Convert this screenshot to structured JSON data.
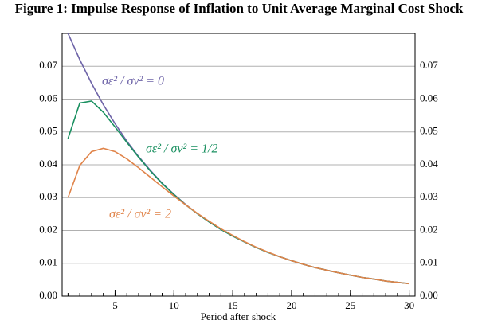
{
  "chart_data": {
    "type": "line",
    "title": "Figure 1: Impulse Response of Inflation to Unit Average Marginal Cost Shock",
    "x_label": "Period after shock",
    "x": [
      1,
      2,
      3,
      4,
      5,
      6,
      7,
      8,
      9,
      10,
      11,
      12,
      13,
      14,
      15,
      16,
      17,
      18,
      19,
      20,
      21,
      22,
      23,
      24,
      25,
      26,
      27,
      28,
      29,
      30
    ],
    "series": [
      {
        "name": "σε² / σν² = 0",
        "color": "#6e64a8",
        "values": [
          0.08,
          0.072,
          0.0648,
          0.0583,
          0.0525,
          0.0472,
          0.0425,
          0.0383,
          0.0344,
          0.031,
          0.0279,
          0.0251,
          0.0226,
          0.0203,
          0.0183,
          0.0165,
          0.0148,
          0.0133,
          0.012,
          0.0108,
          0.0097,
          0.0087,
          0.0079,
          0.0071,
          0.0064,
          0.0057,
          0.0052,
          0.0046,
          0.0042,
          0.0038
        ]
      },
      {
        "name": "σε² / σν² = 1/2",
        "color": "#1a9060",
        "values": [
          0.048,
          0.0588,
          0.0594,
          0.056,
          0.0515,
          0.0468,
          0.0423,
          0.0381,
          0.0343,
          0.0309,
          0.0278,
          0.0251,
          0.0226,
          0.0203,
          0.0183,
          0.0165,
          0.0148,
          0.0133,
          0.012,
          0.0108,
          0.0097,
          0.0087,
          0.0079,
          0.0071,
          0.0064,
          0.0057,
          0.0052,
          0.0046,
          0.0042,
          0.0038
        ]
      },
      {
        "name": "σε² / σν² = 2",
        "color": "#e0844a",
        "values": [
          0.03,
          0.0398,
          0.044,
          0.045,
          0.044,
          0.0418,
          0.0391,
          0.0362,
          0.0333,
          0.0305,
          0.0278,
          0.0252,
          0.0228,
          0.0205,
          0.0185,
          0.0166,
          0.0149,
          0.0134,
          0.012,
          0.0108,
          0.0097,
          0.0087,
          0.0079,
          0.0071,
          0.0064,
          0.0057,
          0.0052,
          0.0046,
          0.0042,
          0.0038
        ]
      }
    ],
    "xlim": [
      0.5,
      30.5
    ],
    "xticks": [
      5,
      10,
      15,
      20,
      25,
      30
    ],
    "ylim": [
      0,
      0.08
    ],
    "yticks": [
      {
        "value": 0,
        "label": "0.00"
      },
      0.01,
      0.02,
      0.03,
      0.04,
      0.05,
      0.06,
      0.07
    ],
    "grid": true,
    "right_axis_mirror": true
  }
}
